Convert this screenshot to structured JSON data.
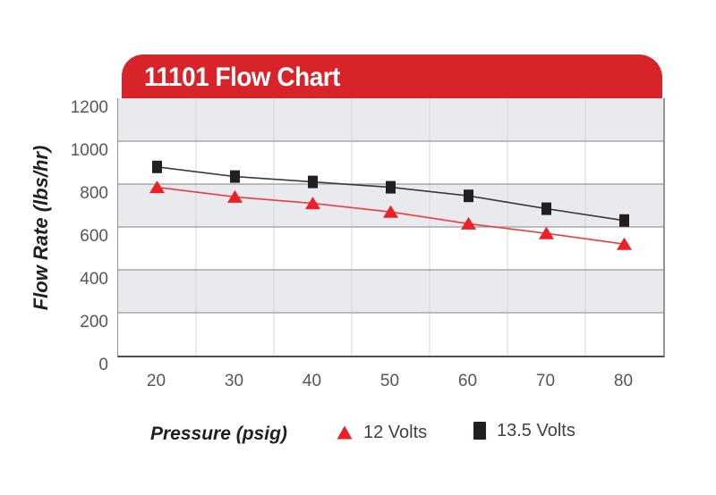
{
  "banner": {
    "title": "11101 Flow Chart",
    "background": "#d8232a",
    "text_color": "#ffffff"
  },
  "chart_data": {
    "type": "line",
    "title": "11101 Flow Chart",
    "x": [
      20,
      30,
      40,
      50,
      60,
      70,
      80
    ],
    "xlabel": "Pressure (psig)",
    "ylabel": "Flow Rate (lbs/hr)",
    "ylim": [
      0,
      1200
    ],
    "ytick_step": 200,
    "grid": true,
    "legend_position": "bottom",
    "series": [
      {
        "name": "12 Volts",
        "marker": "triangle",
        "color": "#ed2027",
        "line_color": "#ee3b41",
        "values": [
          785,
          740,
          710,
          670,
          615,
          570,
          520
        ]
      },
      {
        "name": "13.5 Volts",
        "marker": "square",
        "color": "#231f20",
        "line_color": "#3a3a3c",
        "values": [
          880,
          835,
          810,
          785,
          745,
          685,
          630
        ]
      }
    ]
  },
  "colors": {
    "band_fill": "#e9eaee",
    "band_alt": "#ffffff",
    "h_gridline": "#a7a8ac",
    "v_gridline": "#d6d7da",
    "axis_text": "#55565a",
    "legend_text": "#414143",
    "plot_border_bottom": "#4c4d4f",
    "plot_border_side": "#939498"
  }
}
